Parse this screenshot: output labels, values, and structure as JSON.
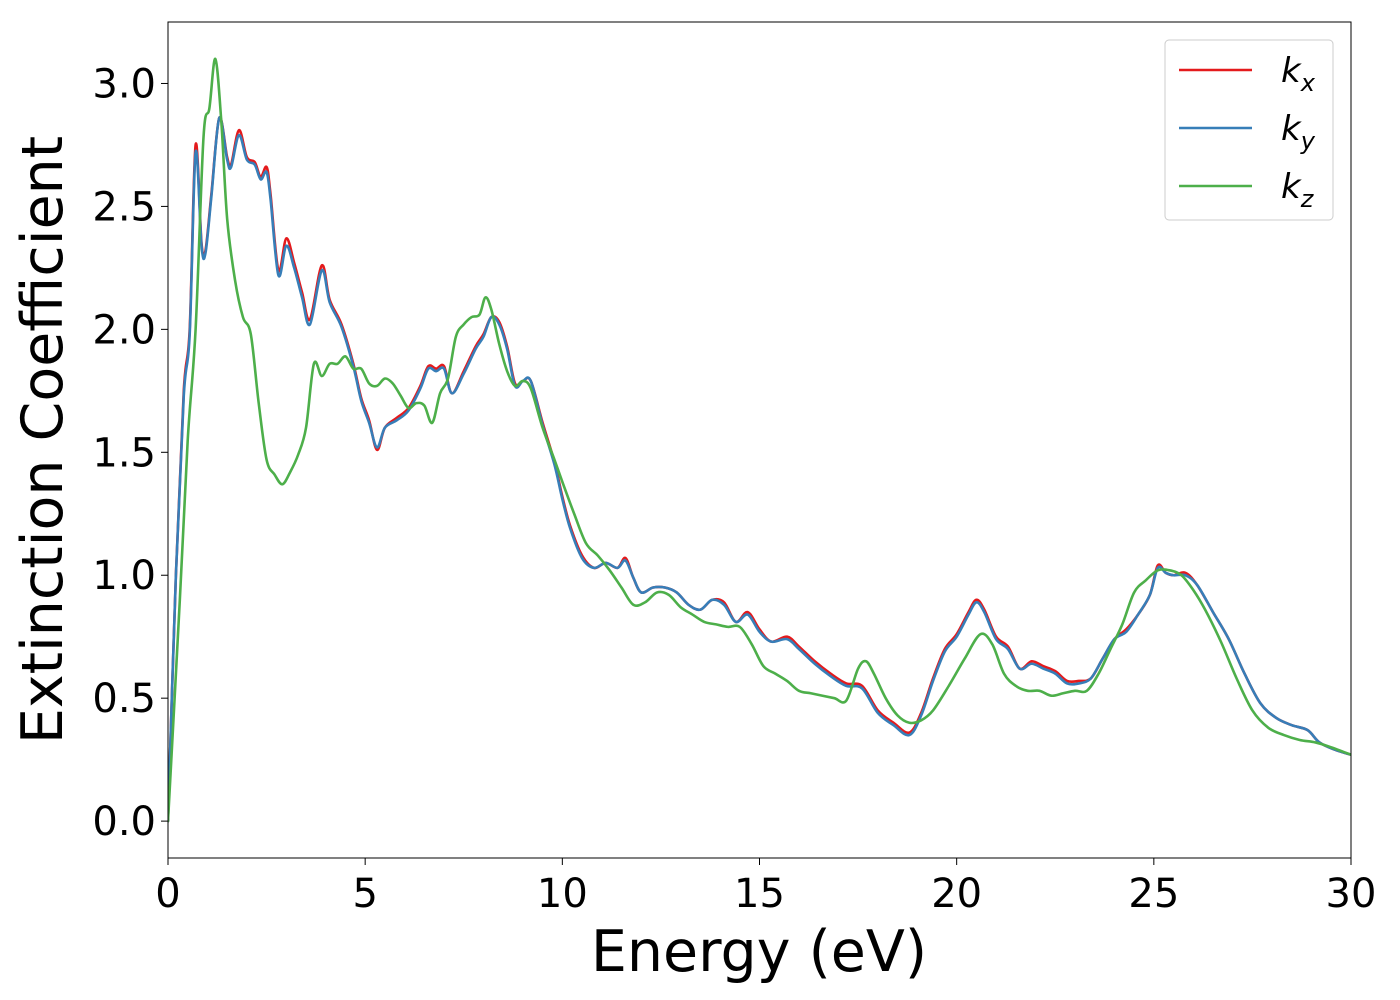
{
  "chart_data": {
    "type": "line",
    "title": "",
    "xlabel": "Energy (eV)",
    "ylabel": "Extinction Coefficient",
    "xlim": [
      0,
      30
    ],
    "ylim": [
      -0.15,
      3.25
    ],
    "xticks": [
      0,
      5,
      10,
      15,
      20,
      25,
      30
    ],
    "xtick_labels": [
      "0",
      "5",
      "10",
      "15",
      "20",
      "25",
      "30"
    ],
    "yticks": [
      0.0,
      0.5,
      1.0,
      1.5,
      2.0,
      2.5,
      3.0
    ],
    "ytick_labels": [
      "0.0",
      "0.5",
      "1.0",
      "1.5",
      "2.0",
      "2.5",
      "3.0"
    ],
    "grid": false,
    "legend_position": "top-right",
    "series": [
      {
        "name": "k_x",
        "legend_base": "k",
        "legend_sub": "x",
        "color": "#e41a1c",
        "x": [
          0,
          0.2,
          0.4,
          0.55,
          0.7,
          0.85,
          0.95,
          1.1,
          1.3,
          1.5,
          1.6,
          1.8,
          2.0,
          2.2,
          2.35,
          2.5,
          2.6,
          2.8,
          3.0,
          3.2,
          3.4,
          3.6,
          3.9,
          4.1,
          4.4,
          4.7,
          4.9,
          5.1,
          5.3,
          5.5,
          5.8,
          6.1,
          6.4,
          6.6,
          6.8,
          7.0,
          7.2,
          7.5,
          7.8,
          8.0,
          8.2,
          8.4,
          8.6,
          8.8,
          9.0,
          9.2,
          9.5,
          9.8,
          10.0,
          10.2,
          10.5,
          10.8,
          11.1,
          11.4,
          11.6,
          11.8,
          12.0,
          12.3,
          12.6,
          12.9,
          13.2,
          13.5,
          13.8,
          14.1,
          14.4,
          14.7,
          15.0,
          15.3,
          15.7,
          16.0,
          16.4,
          16.8,
          17.2,
          17.6,
          18.0,
          18.4,
          18.8,
          19.1,
          19.4,
          19.7,
          20.0,
          20.3,
          20.5,
          20.7,
          21.0,
          21.3,
          21.6,
          21.9,
          22.2,
          22.5,
          22.8,
          23.1,
          23.4,
          23.7,
          24.0,
          24.3,
          24.6,
          24.9,
          25.1,
          25.3,
          25.5,
          25.8,
          26.1,
          26.5,
          26.9,
          27.3,
          27.7,
          28.1,
          28.5,
          28.9,
          29.2,
          29.6,
          30.0
        ],
        "y": [
          0.0,
          1.0,
          1.75,
          2.0,
          2.75,
          2.35,
          2.32,
          2.55,
          2.86,
          2.7,
          2.67,
          2.81,
          2.7,
          2.68,
          2.62,
          2.66,
          2.55,
          2.24,
          2.37,
          2.27,
          2.15,
          2.04,
          2.26,
          2.12,
          2.02,
          1.86,
          1.72,
          1.63,
          1.51,
          1.6,
          1.64,
          1.68,
          1.77,
          1.85,
          1.84,
          1.85,
          1.74,
          1.83,
          1.93,
          1.98,
          2.05,
          2.03,
          1.93,
          1.78,
          1.79,
          1.79,
          1.62,
          1.46,
          1.32,
          1.2,
          1.08,
          1.03,
          1.05,
          1.03,
          1.07,
          0.99,
          0.93,
          0.95,
          0.95,
          0.93,
          0.88,
          0.86,
          0.9,
          0.89,
          0.81,
          0.85,
          0.78,
          0.73,
          0.75,
          0.71,
          0.65,
          0.6,
          0.56,
          0.55,
          0.45,
          0.4,
          0.36,
          0.44,
          0.58,
          0.7,
          0.76,
          0.85,
          0.9,
          0.86,
          0.75,
          0.71,
          0.62,
          0.65,
          0.63,
          0.61,
          0.57,
          0.57,
          0.58,
          0.66,
          0.74,
          0.78,
          0.84,
          0.92,
          1.04,
          1.01,
          1.0,
          1.01,
          0.96,
          0.85,
          0.74,
          0.6,
          0.48,
          0.42,
          0.39,
          0.37,
          0.32,
          0.29,
          0.27
        ]
      },
      {
        "name": "k_y",
        "legend_base": "k",
        "legend_sub": "y",
        "color": "#377eb8",
        "x": [
          0,
          0.2,
          0.4,
          0.55,
          0.7,
          0.85,
          0.95,
          1.1,
          1.3,
          1.5,
          1.6,
          1.8,
          2.0,
          2.2,
          2.35,
          2.5,
          2.6,
          2.8,
          3.0,
          3.2,
          3.4,
          3.6,
          3.9,
          4.1,
          4.4,
          4.7,
          4.9,
          5.1,
          5.3,
          5.5,
          5.8,
          6.1,
          6.4,
          6.6,
          6.8,
          7.0,
          7.2,
          7.5,
          7.8,
          8.0,
          8.2,
          8.4,
          8.6,
          8.8,
          9.0,
          9.2,
          9.5,
          9.8,
          10.0,
          10.2,
          10.5,
          10.8,
          11.1,
          11.4,
          11.6,
          11.8,
          12.0,
          12.3,
          12.6,
          12.9,
          13.2,
          13.5,
          13.8,
          14.1,
          14.4,
          14.7,
          15.0,
          15.3,
          15.7,
          16.0,
          16.4,
          16.8,
          17.2,
          17.6,
          18.0,
          18.4,
          18.8,
          19.1,
          19.4,
          19.7,
          20.0,
          20.3,
          20.5,
          20.7,
          21.0,
          21.3,
          21.6,
          21.9,
          22.2,
          22.5,
          22.8,
          23.1,
          23.4,
          23.7,
          24.0,
          24.3,
          24.6,
          24.9,
          25.1,
          25.3,
          25.5,
          25.8,
          26.1,
          26.5,
          26.9,
          27.3,
          27.7,
          28.1,
          28.5,
          28.9,
          29.2,
          29.6,
          30.0
        ],
        "y": [
          0.0,
          1.0,
          1.73,
          1.98,
          2.72,
          2.34,
          2.31,
          2.54,
          2.86,
          2.69,
          2.66,
          2.79,
          2.69,
          2.67,
          2.61,
          2.64,
          2.53,
          2.22,
          2.34,
          2.25,
          2.13,
          2.02,
          2.24,
          2.11,
          2.01,
          1.85,
          1.71,
          1.62,
          1.52,
          1.6,
          1.63,
          1.67,
          1.76,
          1.84,
          1.83,
          1.84,
          1.74,
          1.82,
          1.92,
          1.97,
          2.05,
          2.02,
          1.92,
          1.77,
          1.79,
          1.79,
          1.61,
          1.45,
          1.31,
          1.19,
          1.07,
          1.03,
          1.05,
          1.03,
          1.06,
          0.99,
          0.93,
          0.95,
          0.95,
          0.93,
          0.88,
          0.86,
          0.9,
          0.88,
          0.81,
          0.84,
          0.77,
          0.73,
          0.74,
          0.7,
          0.64,
          0.59,
          0.55,
          0.54,
          0.44,
          0.39,
          0.35,
          0.43,
          0.57,
          0.69,
          0.75,
          0.84,
          0.89,
          0.85,
          0.74,
          0.7,
          0.62,
          0.64,
          0.62,
          0.6,
          0.56,
          0.56,
          0.58,
          0.66,
          0.74,
          0.77,
          0.84,
          0.92,
          1.03,
          1.01,
          1.0,
          1.0,
          0.96,
          0.85,
          0.74,
          0.6,
          0.48,
          0.42,
          0.39,
          0.37,
          0.32,
          0.29,
          0.27
        ]
      },
      {
        "name": "k_z",
        "legend_base": "k",
        "legend_sub": "z",
        "color": "#4daf4a",
        "x": [
          0,
          0.3,
          0.5,
          0.7,
          0.9,
          1.05,
          1.2,
          1.35,
          1.5,
          1.7,
          1.9,
          2.1,
          2.3,
          2.5,
          2.7,
          2.9,
          3.1,
          3.3,
          3.5,
          3.7,
          3.9,
          4.1,
          4.3,
          4.5,
          4.7,
          4.9,
          5.1,
          5.3,
          5.5,
          5.7,
          5.9,
          6.1,
          6.3,
          6.5,
          6.7,
          6.9,
          7.1,
          7.3,
          7.5,
          7.7,
          7.9,
          8.05,
          8.2,
          8.4,
          8.6,
          8.8,
          9.0,
          9.2,
          9.5,
          9.8,
          10.0,
          10.3,
          10.6,
          10.9,
          11.2,
          11.5,
          11.8,
          12.1,
          12.4,
          12.7,
          13.0,
          13.3,
          13.6,
          13.9,
          14.2,
          14.5,
          14.8,
          15.1,
          15.4,
          15.7,
          16.0,
          16.3,
          16.6,
          16.9,
          17.2,
          17.5,
          17.7,
          17.9,
          18.2,
          18.5,
          18.8,
          19.1,
          19.4,
          19.8,
          20.2,
          20.6,
          20.9,
          21.2,
          21.5,
          21.8,
          22.1,
          22.4,
          22.7,
          23.0,
          23.3,
          23.6,
          23.9,
          24.2,
          24.5,
          24.8,
          25.1,
          25.4,
          25.7,
          26.0,
          26.3,
          26.7,
          27.1,
          27.5,
          27.9,
          28.3,
          28.7,
          29.1,
          29.5,
          30.0
        ],
        "y": [
          0.0,
          0.9,
          1.55,
          2.0,
          2.78,
          2.9,
          3.1,
          2.85,
          2.45,
          2.2,
          2.05,
          1.98,
          1.7,
          1.47,
          1.41,
          1.37,
          1.42,
          1.49,
          1.6,
          1.86,
          1.81,
          1.86,
          1.86,
          1.89,
          1.84,
          1.84,
          1.78,
          1.77,
          1.8,
          1.78,
          1.73,
          1.68,
          1.7,
          1.69,
          1.62,
          1.74,
          1.8,
          1.97,
          2.02,
          2.05,
          2.06,
          2.13,
          2.08,
          1.94,
          1.83,
          1.77,
          1.79,
          1.76,
          1.6,
          1.47,
          1.38,
          1.25,
          1.13,
          1.08,
          1.02,
          0.95,
          0.88,
          0.89,
          0.93,
          0.92,
          0.87,
          0.84,
          0.81,
          0.8,
          0.79,
          0.79,
          0.72,
          0.63,
          0.6,
          0.57,
          0.53,
          0.52,
          0.51,
          0.5,
          0.49,
          0.62,
          0.65,
          0.6,
          0.5,
          0.43,
          0.4,
          0.41,
          0.45,
          0.55,
          0.66,
          0.76,
          0.72,
          0.6,
          0.55,
          0.53,
          0.53,
          0.51,
          0.52,
          0.53,
          0.53,
          0.6,
          0.7,
          0.8,
          0.93,
          0.98,
          1.02,
          1.02,
          1.0,
          0.94,
          0.86,
          0.73,
          0.58,
          0.45,
          0.38,
          0.35,
          0.33,
          0.32,
          0.3,
          0.27
        ]
      }
    ]
  }
}
